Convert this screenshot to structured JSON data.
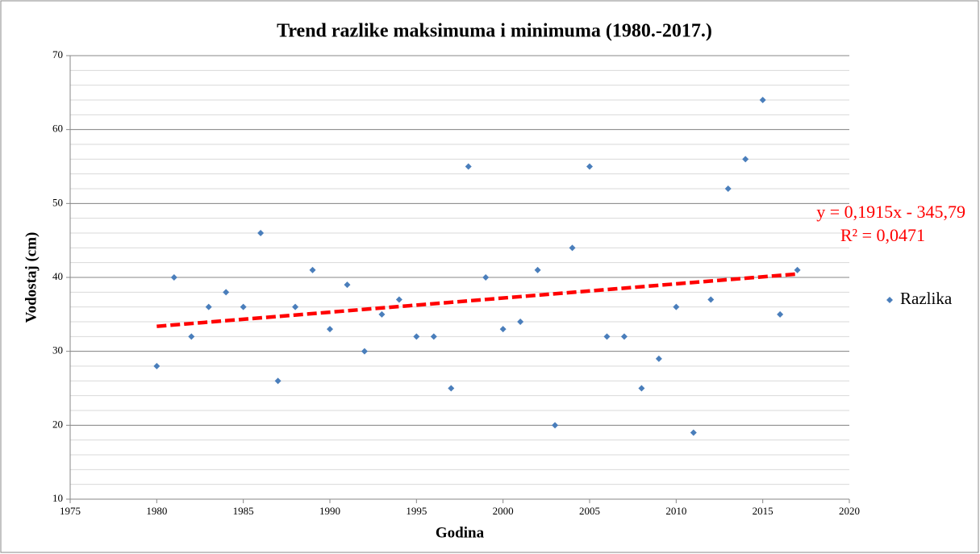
{
  "chart_data": {
    "type": "scatter",
    "title": "Trend razlike maksimuma i minimuma (1980.-2017.)",
    "xlabel": "Godina",
    "ylabel": "Vodostaj (cm)",
    "x": [
      1980,
      1981,
      1982,
      1983,
      1984,
      1985,
      1986,
      1987,
      1988,
      1989,
      1990,
      1991,
      1992,
      1993,
      1994,
      1995,
      1996,
      1997,
      1998,
      1999,
      2000,
      2001,
      2002,
      2003,
      2004,
      2005,
      2006,
      2007,
      2008,
      2009,
      2010,
      2011,
      2012,
      2013,
      2014,
      2015,
      2016,
      2017
    ],
    "series": [
      {
        "name": "Razlika",
        "color": "#4a7ebb",
        "values": [
          28,
          40,
          32,
          36,
          38,
          36,
          46,
          26,
          36,
          41,
          33,
          39,
          30,
          35,
          37,
          32,
          32,
          25,
          55,
          40,
          33,
          34,
          41,
          20,
          44,
          55,
          32,
          32,
          25,
          29,
          36,
          19,
          37,
          52,
          56,
          64,
          35,
          41
        ]
      }
    ],
    "trendline": {
      "equation": "y = 0,1915x - 345,79",
      "r2": "R² = 0,0471",
      "slope": 0.1915,
      "intercept": -345.79,
      "color": "#ff0000"
    },
    "xlim": [
      1975,
      2020
    ],
    "xticks": [
      1975,
      1980,
      1985,
      1990,
      1995,
      2000,
      2005,
      2010,
      2015,
      2020
    ],
    "ylim": [
      10,
      70
    ],
    "yticks": [
      10,
      20,
      30,
      40,
      50,
      60,
      70
    ],
    "grid": {
      "major": true,
      "minor_step": 2
    },
    "legend": "right"
  }
}
